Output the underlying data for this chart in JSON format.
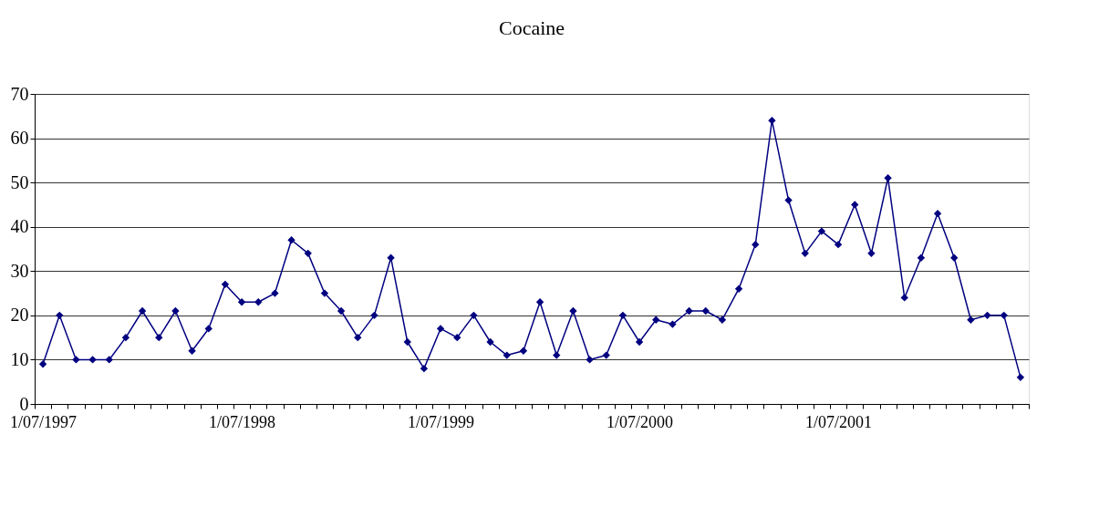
{
  "chart_data": {
    "type": "line",
    "title": "Cocaine",
    "categories": [
      "1/07/1997",
      null,
      null,
      null,
      null,
      null,
      null,
      null,
      null,
      null,
      null,
      null,
      "1/07/1998",
      null,
      null,
      null,
      null,
      null,
      null,
      null,
      null,
      null,
      null,
      null,
      "1/07/1999",
      null,
      null,
      null,
      null,
      null,
      null,
      null,
      null,
      null,
      null,
      null,
      "1/07/2000",
      null,
      null,
      null,
      null,
      null,
      null,
      null,
      null,
      null,
      null,
      null,
      "1/07/2001",
      null,
      null,
      null,
      null,
      null,
      null,
      null,
      null,
      null,
      null,
      null
    ],
    "series": [
      {
        "color": "#000080",
        "values": [
          9,
          20,
          10,
          10,
          10,
          15,
          21,
          15,
          21,
          12,
          17,
          27,
          23,
          23,
          25,
          37,
          34,
          25,
          21,
          15,
          20,
          33,
          14,
          8,
          17,
          15,
          20,
          14,
          11,
          12,
          23,
          11,
          21,
          10,
          11,
          20,
          14,
          19,
          18,
          21,
          21,
          19,
          26,
          36,
          64,
          46,
          34,
          39,
          36,
          45,
          34,
          51,
          24,
          33,
          43,
          33,
          19,
          20,
          20,
          6
        ]
      }
    ],
    "ylim": [
      0,
      70
    ],
    "yticks": [
      0,
      10,
      20,
      30,
      40,
      50,
      60,
      70
    ],
    "grid": "y",
    "marker": "diamond",
    "line_style": "solid"
  }
}
